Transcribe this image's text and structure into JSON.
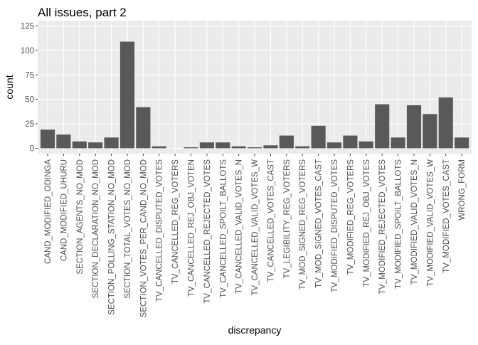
{
  "chart_data": {
    "type": "bar",
    "title": "All issues, part 2",
    "xlabel": "discrepancy",
    "ylabel": "count",
    "ylim": [
      0,
      125
    ],
    "yticks": [
      0,
      25,
      50,
      75,
      100,
      125
    ],
    "grid": true,
    "colors": {
      "bar": "#595959",
      "panel": "#ebebeb",
      "grid_major": "#ffffff"
    },
    "categories": [
      "CAND_MODIFIED_ODINGA",
      "CAND_MODIFIED_UHURU",
      "SECTION_AGENTS_NO_MOD",
      "SECTION_DECLARATION_NO_MOD",
      "SECTION_POLLING_STATION_NO_MOD",
      "SECTION_TOTAL_VOTES_NO_MOD",
      "SECTION_VOTES_PER_CAND_NO_MOD",
      "TV_CANCELLED_DISPUTED_VOTES",
      "TV_CANCELLED_REG_VOTERS",
      "TV_CANCELLED_REJ_OBJ_VOTEN",
      "TV_CANCELLED_REJECTED_VOTES",
      "TV_CANCELLED_SPOILT_BALLOTS",
      "TV_CANCELLED_VALID_VOTES_N",
      "TV_CANCELLED_VALID_VOTES_W",
      "TV_CANCELLED_VOTES_CAST",
      "TV_LEGIBILITY_REG_VOTERS",
      "TV_MOD_SIGNED_REG_VOTERS",
      "TV_MOD_SIGNED_VOTES_CAST",
      "TV_MODIFIED_DISPUTED_VOTES",
      "TV_MODIFIED_REG_VOTERS",
      "TV_MODIFIED_REJ_OBJ_VOTES",
      "TV_MODIFIED_REJECTED_VOTES",
      "TV_MODIFIED_SPOILT_BALLOTS",
      "TV_MODIFIED_VALID_VOTES_N",
      "TV_MODIFIED_VALID_VOTES_W",
      "TV_MODIFIED_VOTES_CAST",
      "WRONG_FORM"
    ],
    "values": [
      19,
      14,
      7,
      6,
      11,
      109,
      42,
      2,
      0,
      1,
      6,
      6,
      2,
      1,
      3,
      13,
      2,
      23,
      6,
      13,
      7,
      45,
      11,
      44,
      35,
      52,
      11
    ]
  }
}
